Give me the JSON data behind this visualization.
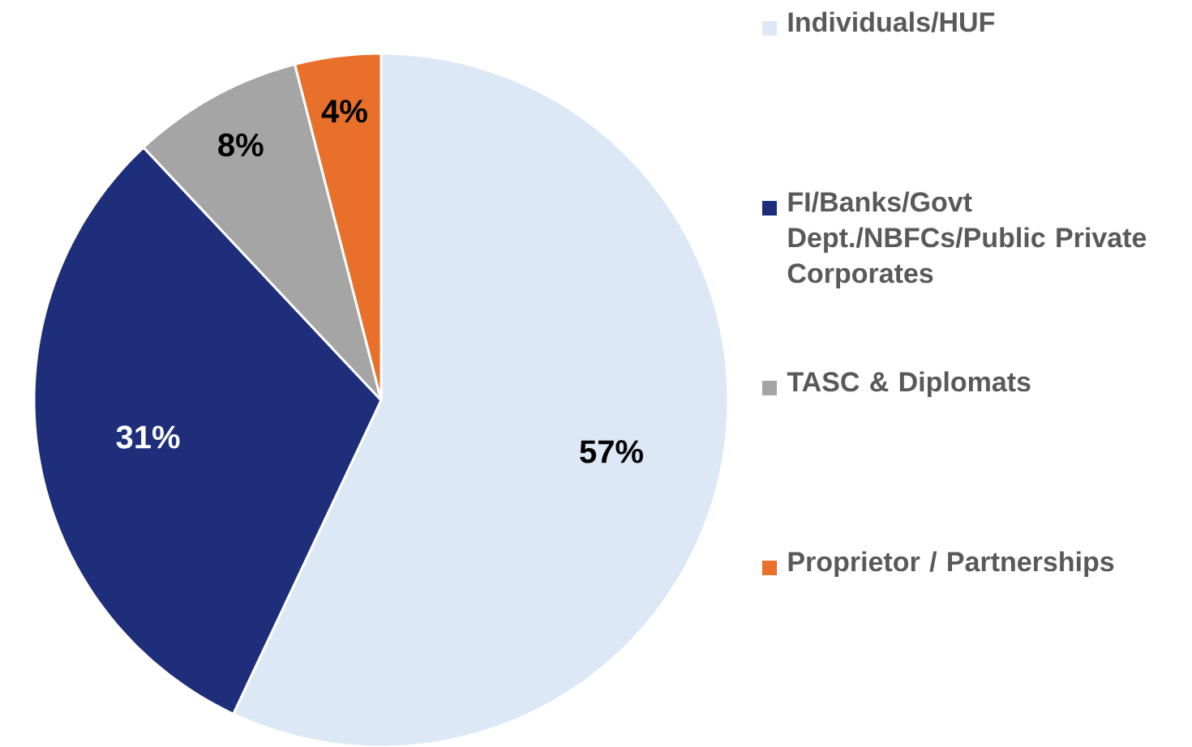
{
  "chart_data": {
    "type": "pie",
    "categories": [
      "Individuals/HUF",
      "FI/Banks/Govt Dept./NBFCs/Public Private Corporates",
      "TASC & Diplomats",
      "Proprietor / Partnerships"
    ],
    "values": [
      57,
      31,
      8,
      4
    ],
    "colors": [
      "#dde8f6",
      "#1f2e7a",
      "#a5a5a5",
      "#e8702a"
    ],
    "value_labels": [
      "57%",
      "31%",
      "8%",
      "4%"
    ],
    "legend": "right"
  }
}
